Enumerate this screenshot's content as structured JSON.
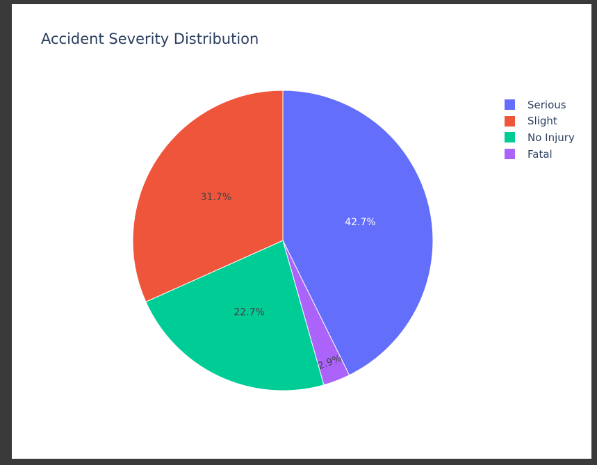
{
  "chart_data": {
    "type": "pie",
    "title": "Accident Severity Distribution",
    "slices": [
      {
        "label": "Serious",
        "value": 42.7,
        "text": "42.7%",
        "color": "#636efa",
        "text_color": "#ffffff"
      },
      {
        "label": "Fatal",
        "value": 2.9,
        "text": "2.9%",
        "color": "#ab63fa",
        "text_color": "#444444"
      },
      {
        "label": "No Injury",
        "value": 22.7,
        "text": "22.7%",
        "color": "#00cc96",
        "text_color": "#444444"
      },
      {
        "label": "Slight",
        "value": 31.7,
        "text": "31.7%",
        "color": "#ef553b",
        "text_color": "#444444"
      }
    ],
    "direction": "clockwise",
    "start_angle": "12 o'clock",
    "legend": {
      "placement": "top-right",
      "items": [
        {
          "label": "Serious",
          "color": "#636efa"
        },
        {
          "label": "Slight",
          "color": "#ef553b"
        },
        {
          "label": "No Injury",
          "color": "#00cc96"
        },
        {
          "label": "Fatal",
          "color": "#ab63fa"
        }
      ]
    }
  }
}
